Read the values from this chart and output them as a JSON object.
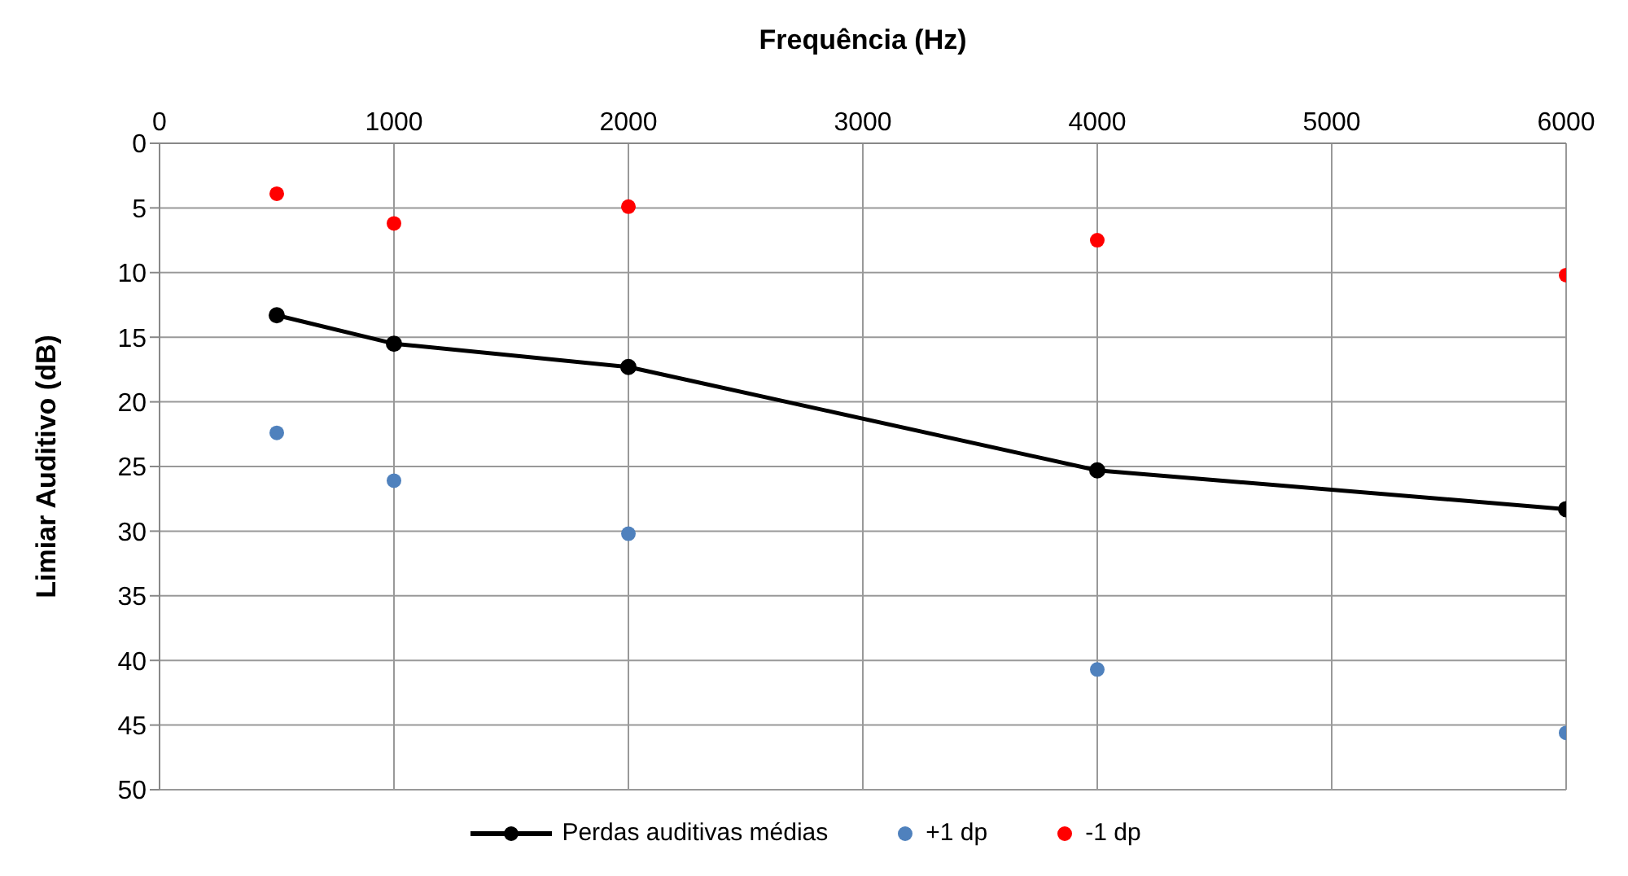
{
  "chart_data": {
    "type": "line",
    "xlabel": "Frequência (Hz)",
    "ylabel": "Limiar Auditivo (dB)",
    "x": [
      500,
      1000,
      2000,
      4000,
      6000
    ],
    "series": [
      {
        "name": "Perdas auditivas médias",
        "color": "#000000",
        "marker": "circle",
        "line_style": "solid",
        "values": [
          13.3,
          15.5,
          17.3,
          25.3,
          28.3
        ]
      },
      {
        "name": "+1 dp",
        "type": "scatter",
        "color": "#4f81bd",
        "values": [
          22.4,
          26.1,
          30.2,
          40.7,
          45.6
        ]
      },
      {
        "name": "-1 dp",
        "type": "scatter",
        "color": "#ff0000",
        "values": [
          3.9,
          6.2,
          4.9,
          7.5,
          10.2
        ]
      }
    ],
    "xlim": [
      0,
      6000
    ],
    "xticks": [
      0,
      1000,
      2000,
      3000,
      4000,
      5000,
      6000
    ],
    "ylim": [
      50,
      0
    ],
    "yticks": [
      0,
      5,
      10,
      15,
      20,
      25,
      30,
      35,
      40,
      45,
      50
    ],
    "grid": true,
    "legend": "bottom"
  }
}
